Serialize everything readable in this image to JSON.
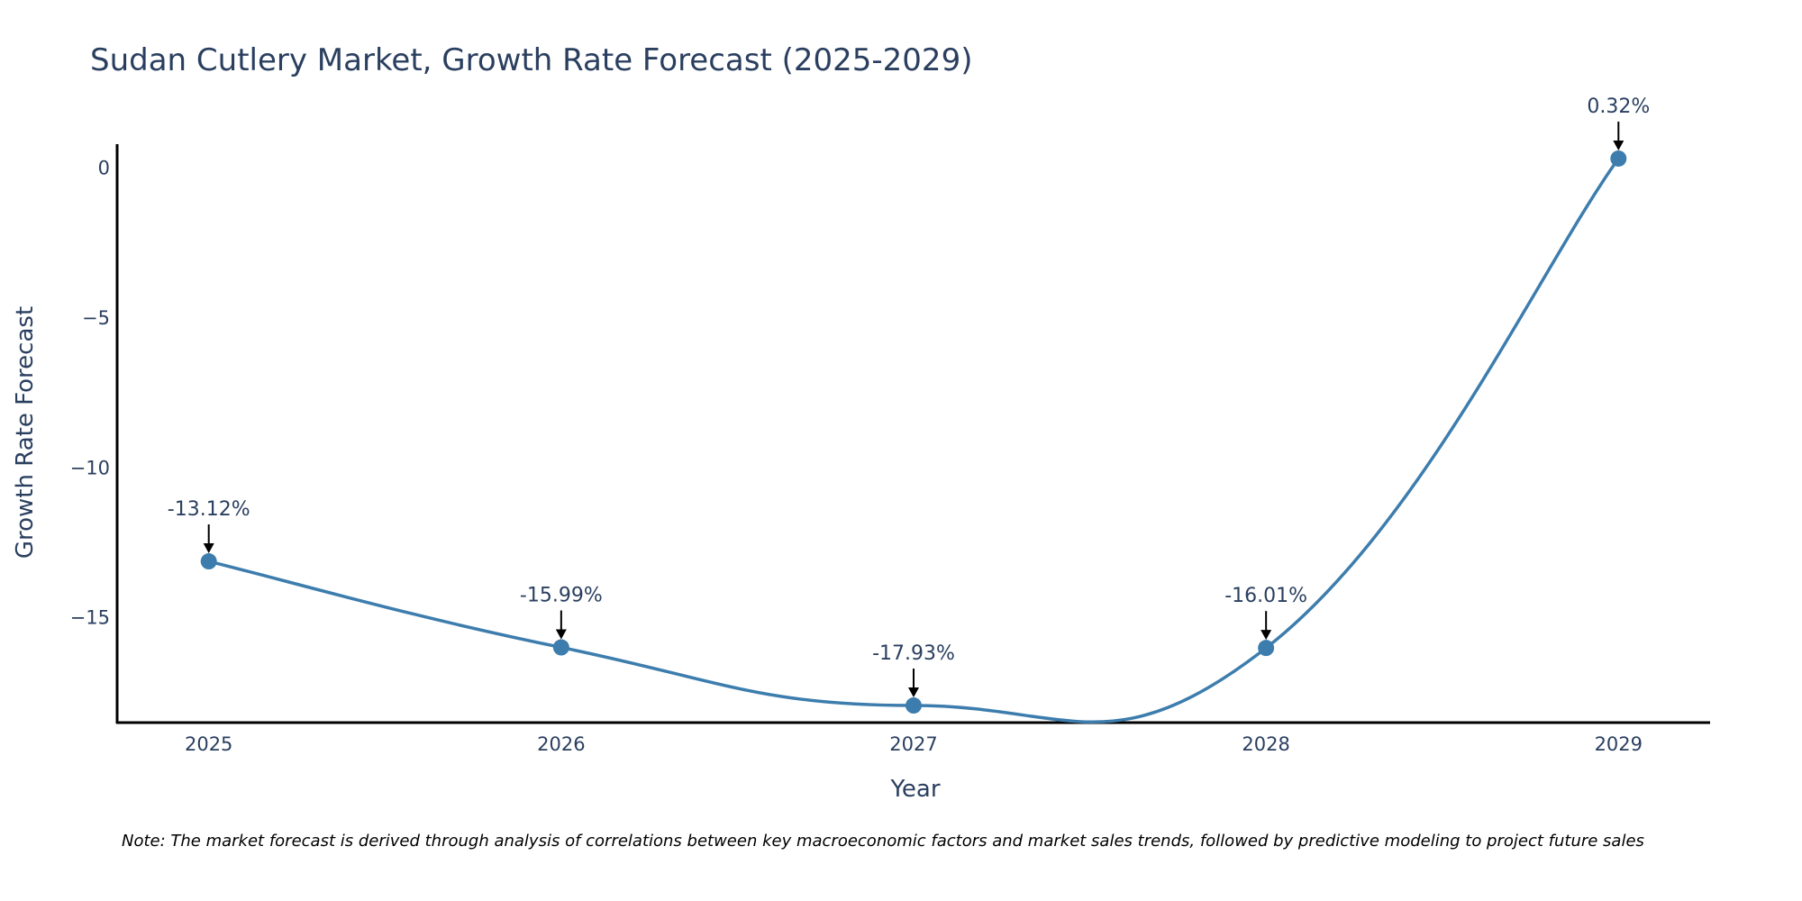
{
  "chart_data": {
    "type": "line",
    "title": "Sudan Cutlery Market, Growth Rate Forecast (2025-2029)",
    "xlabel": "Year",
    "ylabel": "Growth Rate Forecast",
    "categories": [
      "2025",
      "2026",
      "2027",
      "2028",
      "2029"
    ],
    "series": [
      {
        "name": "Growth Rate Forecast",
        "values": [
          -13.12,
          -15.99,
          -17.93,
          -16.01,
          0.32
        ]
      }
    ],
    "annotations": [
      "-13.12%",
      "-15.99%",
      "-17.93%",
      "-16.01%",
      "0.32%"
    ],
    "y_ticks": [
      0,
      -5,
      -10,
      -15
    ],
    "y_tick_labels": [
      "0",
      "−5",
      "−10",
      "−15"
    ],
    "ylim": [
      -18.5,
      0.8
    ],
    "xlim": [
      2024.74,
      2029.26
    ],
    "grid": false,
    "line_color": "#3d7dad",
    "marker_color": "#3d7dad"
  },
  "note": "Note: The market forecast is derived through analysis of correlations between key macroeconomic factors and market sales trends, followed by predictive modeling to project future sales"
}
